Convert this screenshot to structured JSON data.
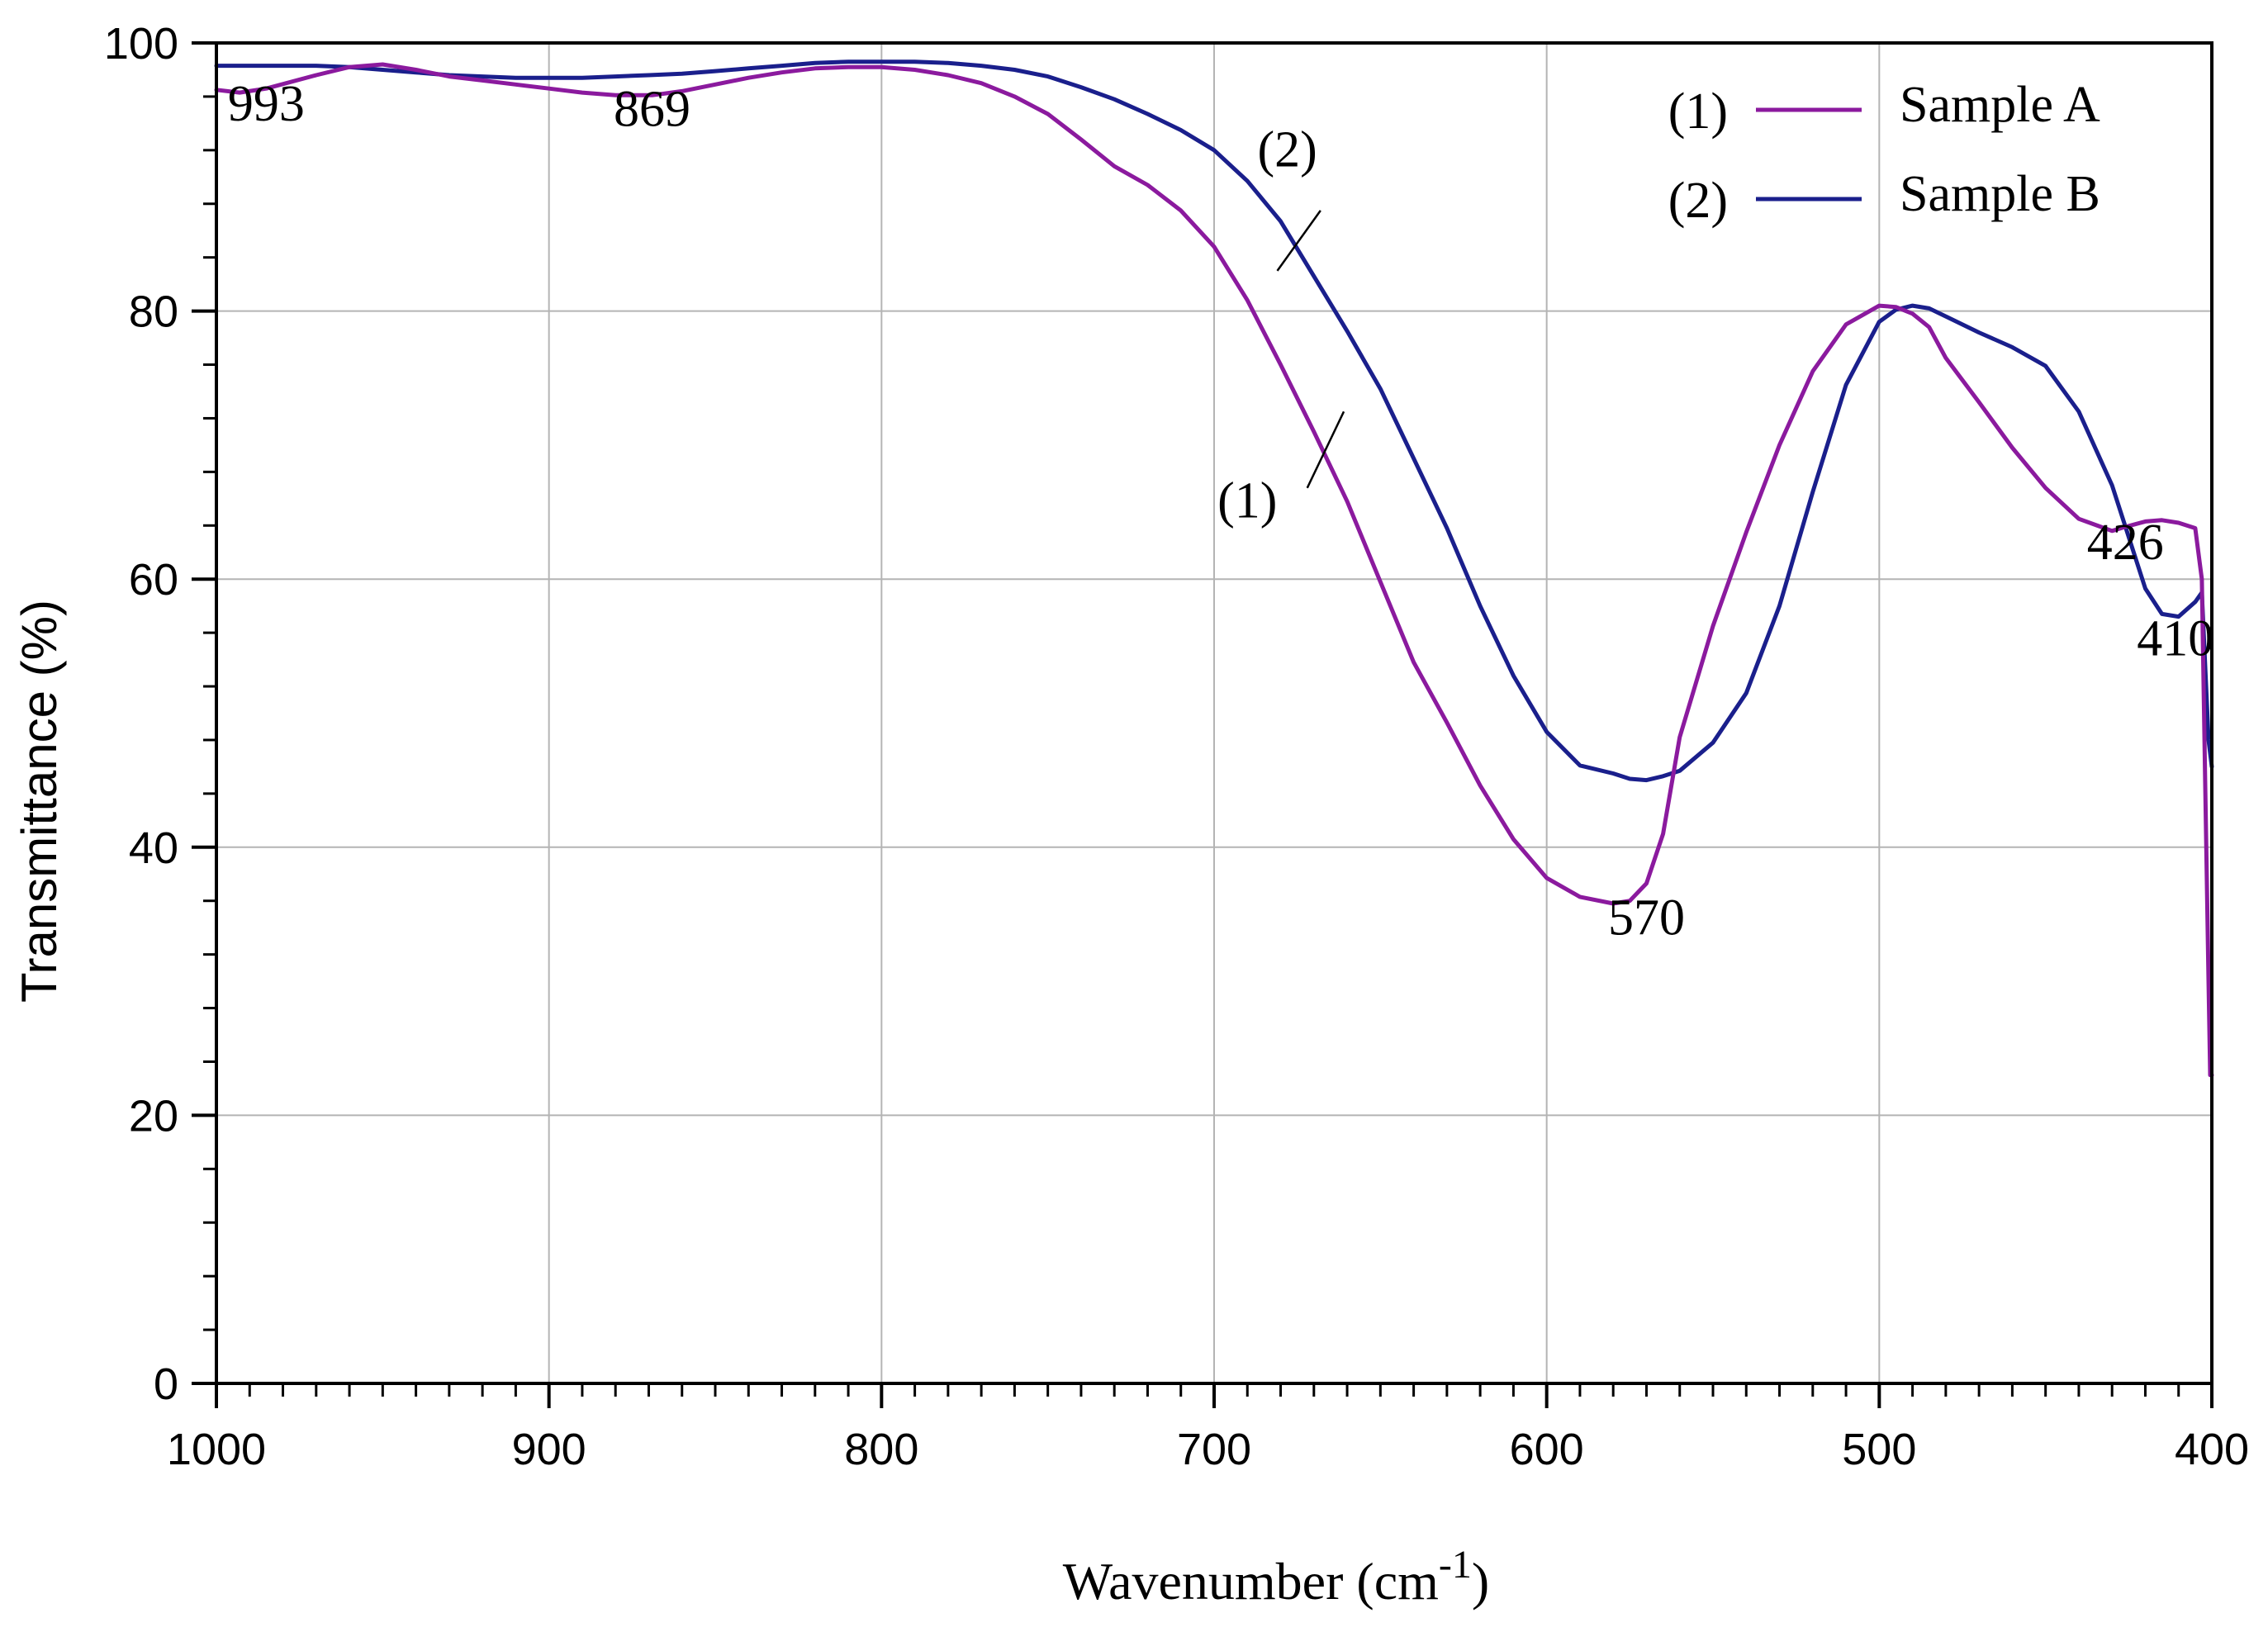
{
  "chart_data": {
    "type": "line",
    "title": "",
    "xlabel": "Wavenumber (cm",
    "xlabel_sup": "-1",
    "xlabel_end": ")",
    "ylabel": "Transmittance (%)",
    "xlim": [
      1000,
      400
    ],
    "ylim": [
      0,
      100
    ],
    "grid": true,
    "legend_position": "top-right",
    "x_ticks": [
      "1000",
      "900",
      "800",
      "700",
      "600",
      "500",
      "400"
    ],
    "y_ticks": [
      "0",
      "20",
      "40",
      "60",
      "80",
      "100"
    ],
    "series": [
      {
        "name": "Sample A",
        "marker": "(1)",
        "color": "#8b1a9e",
        "x": [
          1000,
          993,
          985,
          970,
          960,
          950,
          940,
          930,
          920,
          910,
          900,
          890,
          880,
          869,
          860,
          850,
          840,
          830,
          820,
          810,
          800,
          790,
          780,
          770,
          760,
          750,
          740,
          730,
          720,
          710,
          700,
          690,
          680,
          670,
          660,
          650,
          640,
          630,
          620,
          610,
          600,
          590,
          580,
          575,
          570,
          565,
          560,
          550,
          540,
          530,
          520,
          510,
          500,
          495,
          490,
          485,
          480,
          470,
          460,
          450,
          440,
          430,
          426,
          420,
          415,
          410,
          405,
          403,
          402,
          401,
          400.5,
          400
        ],
        "y": [
          96.5,
          96.3,
          96.6,
          97.6,
          98.2,
          98.4,
          98.0,
          97.5,
          97.2,
          96.9,
          96.6,
          96.3,
          96.1,
          96.1,
          96.4,
          96.9,
          97.4,
          97.8,
          98.1,
          98.2,
          98.2,
          98.0,
          97.6,
          97.0,
          96.0,
          94.7,
          92.8,
          90.8,
          89.4,
          87.5,
          84.8,
          80.8,
          76.0,
          71.0,
          65.8,
          59.8,
          53.8,
          49.3,
          44.6,
          40.6,
          37.7,
          36.3,
          35.8,
          36.0,
          37.3,
          41.0,
          48.2,
          56.5,
          63.5,
          70.0,
          75.5,
          79.0,
          80.4,
          80.3,
          79.8,
          78.8,
          76.5,
          73.2,
          69.8,
          66.8,
          64.5,
          63.6,
          63.9,
          64.3,
          64.4,
          64.2,
          63.8,
          60.0,
          45.0,
          30.0,
          23.0,
          23.0
        ]
      },
      {
        "name": "Sample B",
        "marker": "(2)",
        "color": "#1a1f8c",
        "x": [
          1000,
          990,
          980,
          970,
          960,
          950,
          940,
          930,
          920,
          910,
          900,
          890,
          880,
          870,
          860,
          850,
          840,
          830,
          820,
          810,
          800,
          790,
          780,
          770,
          760,
          750,
          740,
          730,
          720,
          710,
          700,
          690,
          680,
          670,
          660,
          650,
          640,
          630,
          620,
          610,
          600,
          590,
          580,
          575,
          570,
          565,
          560,
          550,
          540,
          530,
          520,
          510,
          500,
          495,
          490,
          485,
          480,
          470,
          460,
          450,
          440,
          430,
          420,
          415,
          410,
          405,
          403,
          401,
          400
        ],
        "y": [
          98.3,
          98.3,
          98.3,
          98.3,
          98.2,
          98.0,
          97.8,
          97.6,
          97.5,
          97.4,
          97.4,
          97.4,
          97.5,
          97.6,
          97.7,
          97.9,
          98.1,
          98.3,
          98.5,
          98.6,
          98.6,
          98.6,
          98.5,
          98.3,
          98.0,
          97.5,
          96.7,
          95.8,
          94.7,
          93.5,
          92.0,
          89.7,
          86.7,
          82.6,
          78.5,
          74.2,
          69.0,
          63.8,
          58.0,
          52.8,
          48.6,
          46.1,
          45.5,
          45.1,
          45.0,
          45.3,
          45.7,
          47.8,
          51.5,
          58.0,
          66.5,
          74.5,
          79.2,
          80.1,
          80.4,
          80.2,
          79.6,
          78.4,
          77.3,
          75.9,
          72.5,
          67.0,
          59.3,
          57.4,
          57.2,
          58.3,
          59.0,
          48.0,
          46.0
        ]
      }
    ],
    "annotations": [
      {
        "text": "993",
        "x": 985,
        "y": 94.2
      },
      {
        "text": "869",
        "x": 869,
        "y": 93.8
      },
      {
        "text": "570",
        "x": 570,
        "y": 33.5
      },
      {
        "text": "426",
        "x": 426,
        "y": 61.5
      },
      {
        "text": "410",
        "x": 411,
        "y": 54.3
      }
    ],
    "curve_callouts": [
      {
        "text": "(2)",
        "x": 678,
        "y": 90.8,
        "line_from": [
          668,
          87.5
        ],
        "line_to": [
          681,
          83.0
        ]
      },
      {
        "text": "(1)",
        "x": 690,
        "y": 64.6,
        "line_from": [
          672,
          66.8
        ],
        "line_to": [
          661,
          72.5
        ]
      }
    ]
  }
}
